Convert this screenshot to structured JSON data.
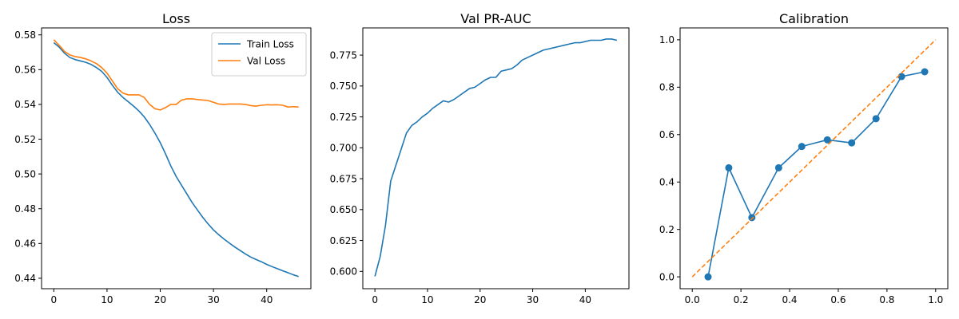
{
  "colors": {
    "blue": "#1f77b4",
    "orange": "#ff7f0e"
  },
  "chart_data": [
    {
      "type": "line",
      "title": "Loss",
      "xlabel": "",
      "ylabel": "",
      "xlim": [
        -2.3,
        48.3
      ],
      "ylim": [
        0.434,
        0.584
      ],
      "xticks": [
        0,
        10,
        20,
        30,
        40
      ],
      "yticks": [
        0.44,
        0.46,
        0.48,
        0.5,
        0.52,
        0.54,
        0.56,
        0.58
      ],
      "ytick_labels": [
        "0.44",
        "0.46",
        "0.48",
        "0.50",
        "0.52",
        "0.54",
        "0.56",
        "0.58"
      ],
      "legend": "top-right",
      "series": [
        {
          "name": "Train Loss",
          "color": "#1f77b4",
          "x": [
            0,
            1,
            2,
            3,
            4,
            5,
            6,
            7,
            8,
            9,
            10,
            11,
            12,
            13,
            14,
            15,
            16,
            17,
            18,
            19,
            20,
            21,
            22,
            23,
            24,
            25,
            26,
            27,
            28,
            29,
            30,
            31,
            32,
            33,
            34,
            35,
            36,
            37,
            38,
            39,
            40,
            41,
            42,
            43,
            44,
            45,
            46
          ],
          "y": [
            0.5755,
            0.573,
            0.5695,
            0.567,
            0.5658,
            0.565,
            0.5642,
            0.563,
            0.5612,
            0.559,
            0.5555,
            0.551,
            0.547,
            0.544,
            0.5415,
            0.539,
            0.5362,
            0.5328,
            0.5285,
            0.5235,
            0.518,
            0.5115,
            0.5045,
            0.4985,
            0.4935,
            0.4885,
            0.4835,
            0.4792,
            0.475,
            0.4712,
            0.4678,
            0.465,
            0.4625,
            0.4602,
            0.458,
            0.456,
            0.454,
            0.4522,
            0.4508,
            0.4495,
            0.448,
            0.4467,
            0.4455,
            0.4443,
            0.4432,
            0.442,
            0.441
          ]
        },
        {
          "name": "Val Loss",
          "color": "#ff7f0e",
          "x": [
            0,
            1,
            2,
            3,
            4,
            5,
            6,
            7,
            8,
            9,
            10,
            11,
            12,
            13,
            14,
            15,
            16,
            17,
            18,
            19,
            20,
            21,
            22,
            23,
            24,
            25,
            26,
            27,
            28,
            29,
            30,
            31,
            32,
            33,
            34,
            35,
            36,
            37,
            38,
            39,
            40,
            41,
            42,
            43,
            44,
            45,
            46
          ],
          "y": [
            0.5772,
            0.574,
            0.5705,
            0.5685,
            0.5675,
            0.567,
            0.5662,
            0.565,
            0.5635,
            0.5612,
            0.558,
            0.5535,
            0.549,
            0.5465,
            0.5455,
            0.5455,
            0.5455,
            0.544,
            0.54,
            0.5375,
            0.5368,
            0.5382,
            0.54,
            0.54,
            0.5425,
            0.5432,
            0.5432,
            0.5428,
            0.5425,
            0.5422,
            0.5412,
            0.5402,
            0.54,
            0.5402,
            0.5402,
            0.5402,
            0.54,
            0.5393,
            0.539,
            0.5395,
            0.5398,
            0.5397,
            0.5398,
            0.5395,
            0.5385,
            0.5387,
            0.5385
          ]
        }
      ]
    },
    {
      "type": "line",
      "title": "Val PR-AUC",
      "xlabel": "",
      "ylabel": "",
      "xlim": [
        -2.3,
        48.3
      ],
      "ylim": [
        0.586,
        0.797
      ],
      "xticks": [
        0,
        10,
        20,
        30,
        40
      ],
      "yticks": [
        0.6,
        0.625,
        0.65,
        0.675,
        0.7,
        0.725,
        0.75,
        0.775
      ],
      "ytick_labels": [
        "0.600",
        "0.625",
        "0.650",
        "0.675",
        "0.700",
        "0.725",
        "0.750",
        "0.775"
      ],
      "series": [
        {
          "color": "#1f77b4",
          "x": [
            0,
            1,
            2,
            3,
            4,
            5,
            6,
            7,
            8,
            9,
            10,
            11,
            12,
            13,
            14,
            15,
            16,
            17,
            18,
            19,
            20,
            21,
            22,
            23,
            24,
            25,
            26,
            27,
            28,
            29,
            30,
            31,
            32,
            33,
            34,
            35,
            36,
            37,
            38,
            39,
            40,
            41,
            42,
            43,
            44,
            45,
            46
          ],
          "y": [
            0.596,
            0.612,
            0.637,
            0.673,
            0.686,
            0.699,
            0.712,
            0.718,
            0.721,
            0.725,
            0.728,
            0.732,
            0.735,
            0.738,
            0.737,
            0.739,
            0.742,
            0.745,
            0.748,
            0.749,
            0.752,
            0.755,
            0.757,
            0.757,
            0.762,
            0.763,
            0.764,
            0.767,
            0.771,
            0.773,
            0.775,
            0.777,
            0.779,
            0.78,
            0.781,
            0.782,
            0.783,
            0.784,
            0.785,
            0.785,
            0.786,
            0.787,
            0.787,
            0.787,
            0.788,
            0.788,
            0.787
          ]
        }
      ]
    },
    {
      "type": "line",
      "title": "Calibration",
      "xlabel": "",
      "ylabel": "",
      "xlim": [
        -0.05,
        1.05
      ],
      "ylim": [
        -0.05,
        1.05
      ],
      "xticks": [
        0.0,
        0.2,
        0.4,
        0.6,
        0.8,
        1.0
      ],
      "xtick_labels": [
        "0.0",
        "0.2",
        "0.4",
        "0.6",
        "0.8",
        "1.0"
      ],
      "yticks": [
        0.0,
        0.2,
        0.4,
        0.6,
        0.8,
        1.0
      ],
      "ytick_labels": [
        "0.0",
        "0.2",
        "0.4",
        "0.6",
        "0.8",
        "1.0"
      ],
      "series": [
        {
          "color": "#1f77b4",
          "markers": true,
          "x": [
            0.065,
            0.15,
            0.245,
            0.355,
            0.45,
            0.555,
            0.655,
            0.755,
            0.86,
            0.955
          ],
          "y": [
            0.0,
            0.46,
            0.25,
            0.46,
            0.55,
            0.578,
            0.565,
            0.667,
            0.845,
            0.865
          ]
        },
        {
          "color": "#ff7f0e",
          "dashed": true,
          "x": [
            0,
            1
          ],
          "y": [
            0,
            1
          ]
        }
      ]
    }
  ]
}
